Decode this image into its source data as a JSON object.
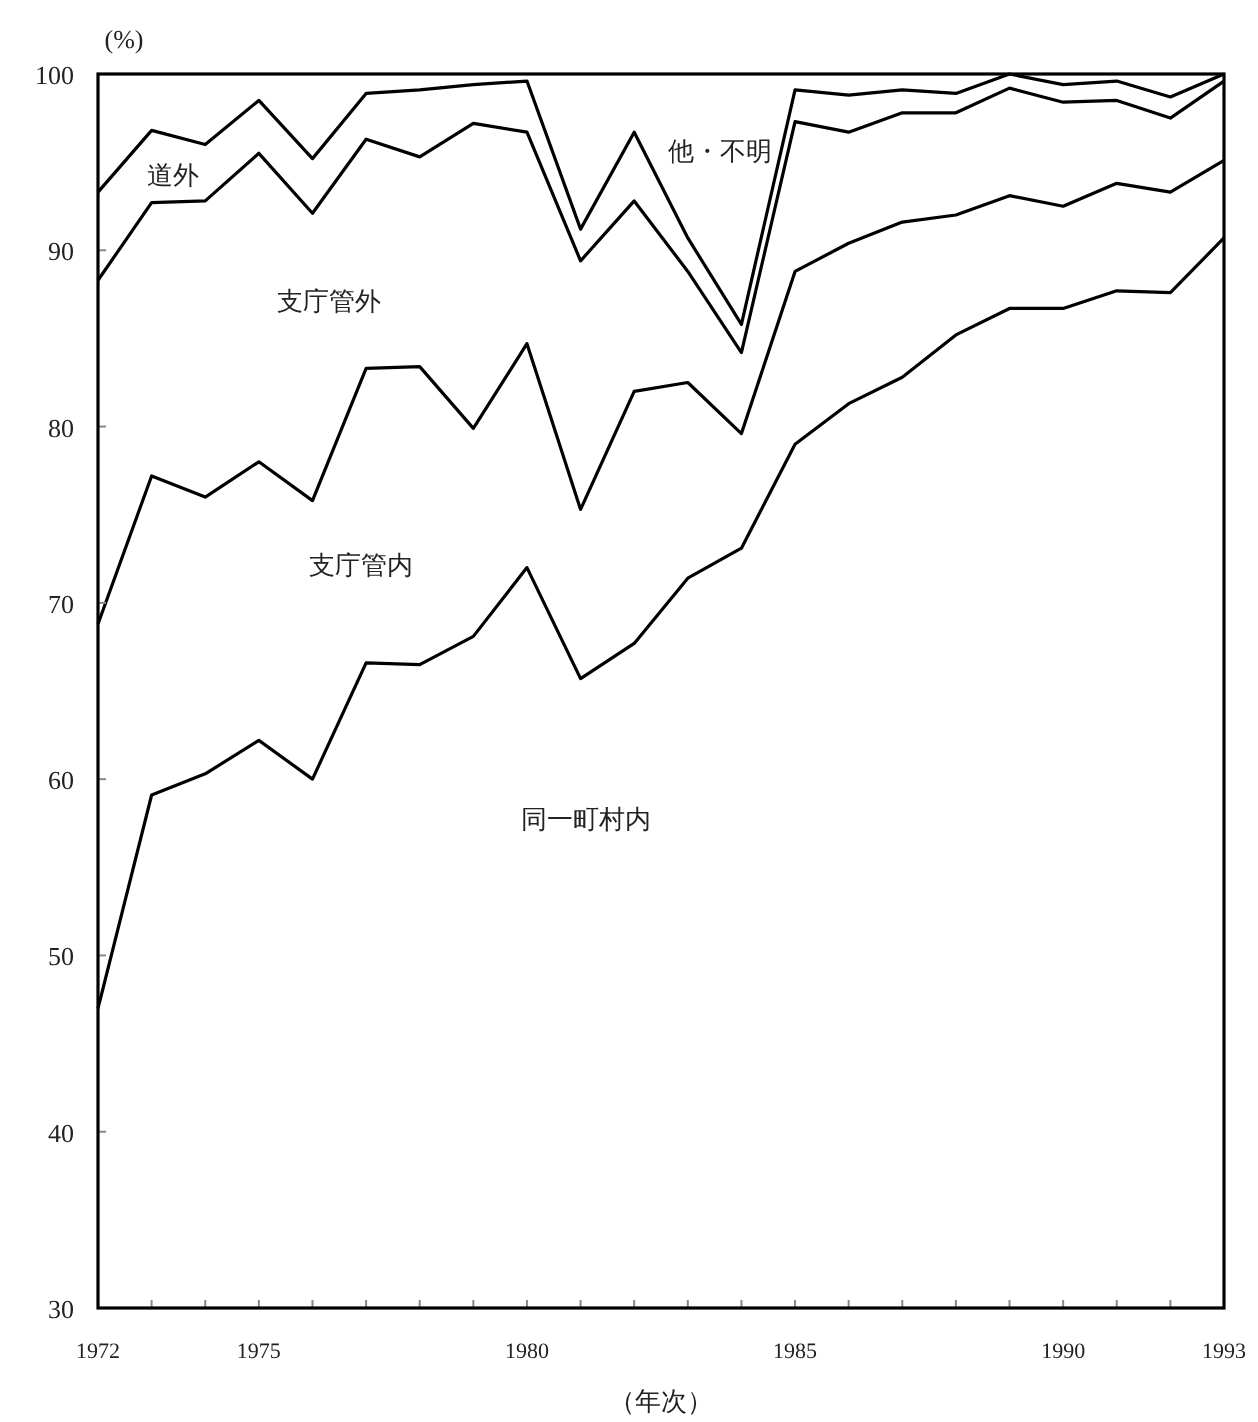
{
  "chart_data": {
    "type": "line",
    "xlabel": "（年次）",
    "ylabel": "(%)",
    "x": [
      1972,
      1973,
      1974,
      1975,
      1976,
      1977,
      1978,
      1979,
      1980,
      1981,
      1982,
      1983,
      1984,
      1985,
      1986,
      1987,
      1988,
      1989,
      1990,
      1991,
      1992,
      1993
    ],
    "series": [
      {
        "color": "#000000",
        "values": [
          47.0,
          59.1,
          60.3,
          62.2,
          60.0,
          66.6,
          66.5,
          68.1,
          72.0,
          65.7,
          67.7,
          71.4,
          73.1,
          79.0,
          81.3,
          82.8,
          85.2,
          86.7,
          86.7,
          87.7,
          87.6,
          90.7
        ]
      },
      {
        "color": "#000000",
        "values": [
          68.8,
          77.2,
          76.0,
          78.0,
          75.8,
          83.3,
          83.4,
          79.9,
          84.7,
          75.3,
          82.0,
          82.5,
          79.6,
          88.8,
          90.4,
          91.6,
          92.0,
          93.1,
          92.5,
          93.8,
          93.3,
          95.1
        ]
      },
      {
        "color": "#000000",
        "values": [
          88.3,
          92.7,
          92.8,
          95.5,
          92.1,
          96.3,
          95.3,
          97.2,
          96.7,
          89.4,
          92.8,
          88.8,
          84.2,
          97.3,
          96.7,
          97.8,
          97.8,
          99.2,
          98.4,
          98.5,
          97.5,
          99.6
        ]
      },
      {
        "color": "#000000",
        "values": [
          93.3,
          96.8,
          96.0,
          98.5,
          95.2,
          98.9,
          99.1,
          99.4,
          99.6,
          91.2,
          96.7,
          90.7,
          85.8,
          99.1,
          98.8,
          99.1,
          98.9,
          100.0,
          99.4,
          99.6,
          98.7,
          100.0
        ]
      }
    ],
    "annotations": [
      "他・不明",
      "道外",
      "支庁管外",
      "支庁管内",
      "同一町村内"
    ],
    "xlim": [
      1972,
      1993
    ],
    "xticks": [
      1972,
      {
        "value": 1973,
        "label": null
      },
      {
        "value": 1974,
        "label": null
      },
      1975,
      {
        "value": 1976,
        "label": null
      },
      {
        "value": 1977,
        "label": null
      },
      {
        "value": 1978,
        "label": null
      },
      {
        "value": 1979,
        "label": null
      },
      1980,
      {
        "value": 1981,
        "label": null
      },
      {
        "value": 1982,
        "label": null
      },
      {
        "value": 1983,
        "label": null
      },
      {
        "value": 1984,
        "label": null
      },
      1985,
      {
        "value": 1986,
        "label": null
      },
      {
        "value": 1987,
        "label": null
      },
      {
        "value": 1988,
        "label": null
      },
      {
        "value": 1989,
        "label": null
      },
      1990,
      {
        "value": 1991,
        "label": null
      },
      {
        "value": 1992,
        "label": null
      },
      1993
    ],
    "ylim": [
      30,
      100
    ],
    "yticks": [
      30,
      40,
      50,
      60,
      70,
      80,
      90,
      100
    ]
  }
}
